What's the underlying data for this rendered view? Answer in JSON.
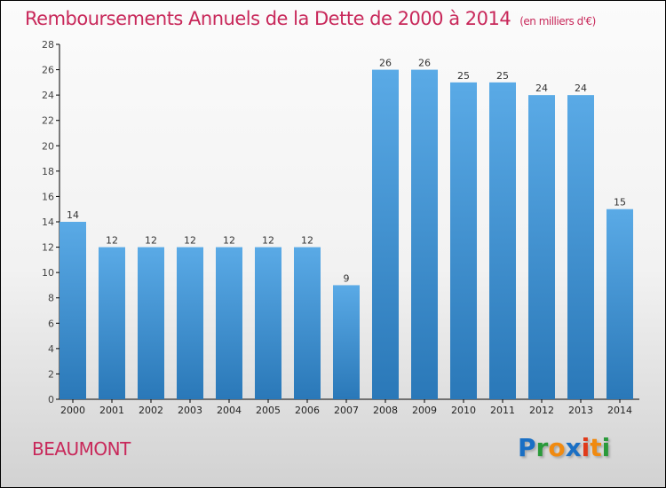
{
  "chart_data": {
    "type": "bar",
    "title": "Remboursements Annuels de la Dette de 2000 à 2014",
    "subtitle": "(en milliers d'€)",
    "categories": [
      "2000",
      "2001",
      "2002",
      "2003",
      "2004",
      "2005",
      "2006",
      "2007",
      "2008",
      "2009",
      "2010",
      "2011",
      "2012",
      "2013",
      "2014"
    ],
    "values": [
      14,
      12,
      12,
      12,
      12,
      12,
      12,
      9,
      26,
      26,
      25,
      25,
      24,
      24,
      15
    ],
    "ylim": [
      0,
      28
    ],
    "yticks": [
      0,
      2,
      4,
      6,
      8,
      10,
      12,
      14,
      16,
      18,
      20,
      22,
      24,
      26,
      28
    ],
    "xlabel": "",
    "ylabel": "",
    "bar_color_top": "#5aaae6",
    "bar_color_bottom": "#2a78b8"
  },
  "location": "BEAUMONT",
  "logo": {
    "text": "Proxiti",
    "letters": [
      [
        "P",
        "#1a6fc4"
      ],
      [
        "r",
        "#2a9a3a"
      ],
      [
        "o",
        "#f08a10"
      ],
      [
        "x",
        "#1a6fc4"
      ],
      [
        "i",
        "#e03a1a"
      ],
      [
        "t",
        "#f08a10"
      ],
      [
        "i",
        "#2a9a3a"
      ]
    ]
  }
}
